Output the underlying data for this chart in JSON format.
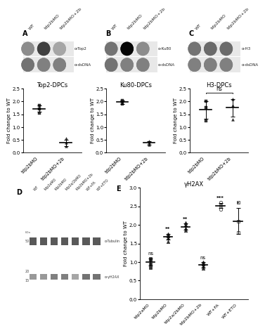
{
  "panel_A": {
    "title": "Top2-DPCs",
    "xlabel_cats": [
      "tdp2bMO",
      "tdp2bMO+2b"
    ],
    "data": {
      "tdp2bMO": [
        1.55,
        1.72,
        1.85
      ],
      "tdp2bMO+2b": [
        0.25,
        0.38,
        0.55
      ]
    },
    "means": [
      1.72,
      0.38
    ],
    "errors": [
      0.13,
      0.13
    ],
    "ylim": [
      0.0,
      2.5
    ],
    "yticks": [
      0.0,
      0.5,
      1.0,
      1.5,
      2.0,
      2.5
    ],
    "ylabel": "Fold change to WT"
  },
  "panel_B": {
    "title": "Ku80-DPCs",
    "xlabel_cats": [
      "tdp2bMO",
      "tdp2bMO+2b"
    ],
    "data": {
      "tdp2bMO": [
        1.9,
        2.0,
        2.05
      ],
      "tdp2bMO+2b": [
        0.3,
        0.38,
        0.45
      ]
    },
    "means": [
      1.98,
      0.38
    ],
    "errors": [
      0.07,
      0.07
    ],
    "ylim": [
      0.0,
      2.5
    ],
    "yticks": [
      0.0,
      0.5,
      1.0,
      1.5,
      2.0,
      2.5
    ],
    "ylabel": "Fold change to WT"
  },
  "panel_C": {
    "title": "H3-DPCs",
    "xlabel_cats": [
      "tdp2bMO",
      "tdp2bMO+2b"
    ],
    "data": {
      "tdp2bMO": [
        1.25,
        1.75,
        2.0
      ],
      "tdp2bMO+2b": [
        1.3,
        1.85,
        2.1
      ]
    },
    "means": [
      1.67,
      1.75
    ],
    "errors": [
      0.35,
      0.35
    ],
    "annotation": "ns",
    "ylim": [
      0.0,
      2.5
    ],
    "yticks": [
      0.0,
      0.5,
      1.0,
      1.5,
      2.0,
      2.5
    ],
    "ylabel": "Fold change to WT"
  },
  "panel_E": {
    "title": "γH2AX",
    "xlabel_cats": [
      "tdp2aMO",
      "tdp2bMO",
      "tdp2a/2bMO",
      "tdp2bMO+2b",
      "WT+FA",
      "WT+ETO"
    ],
    "data": {
      "tdp2aMO": [
        0.85,
        0.95,
        1.05,
        1.1
      ],
      "tdp2bMO": [
        1.55,
        1.65,
        1.7,
        1.75
      ],
      "tdp2a/2bMO": [
        1.85,
        1.9,
        2.0,
        2.05
      ],
      "tdp2bMO+2b": [
        0.82,
        0.88,
        0.95,
        1.0
      ],
      "WT+FA": [
        2.42,
        2.5,
        2.55,
        2.6
      ],
      "WT+ETO": [
        1.8,
        2.1,
        2.6
      ]
    },
    "means": [
      1.0,
      1.68,
      1.95,
      0.92,
      2.52,
      2.1
    ],
    "errors": [
      0.1,
      0.08,
      0.08,
      0.07,
      0.07,
      0.35
    ],
    "annotations": [
      "ns",
      "**",
      "**",
      "ns",
      "***",
      "*"
    ],
    "ylim": [
      0.0,
      3.0
    ],
    "yticks": [
      0.0,
      0.5,
      1.0,
      1.5,
      2.0,
      2.5,
      3.0
    ],
    "ylabel": "Fold change to WT"
  },
  "dot_blot_A": {
    "labels_top": [
      "WT",
      "tdp2bMO",
      "tdp2bMO+2b"
    ],
    "row_labels": [
      "α-Top2",
      "α-dsDNA"
    ],
    "row0_shades": [
      0.55,
      0.25,
      0.65
    ],
    "row1_shades": [
      0.45,
      0.5,
      0.5
    ]
  },
  "dot_blot_B": {
    "labels_top": [
      "WT",
      "tdp2bMO",
      "tdp2bMO+2b"
    ],
    "row_labels": [
      "α-Ku80",
      "α-dsDNA"
    ],
    "row0_shades": [
      0.45,
      0.02,
      0.55
    ],
    "row1_shades": [
      0.45,
      0.5,
      0.5
    ]
  },
  "dot_blot_C": {
    "labels_top": [
      "WT",
      "tdp2bMO",
      "tdp2bMO+2b"
    ],
    "row_labels": [
      "α-H3",
      "α-dsDNA"
    ],
    "row0_shades": [
      0.45,
      0.42,
      0.42
    ],
    "row1_shades": [
      0.5,
      0.5,
      0.5
    ]
  },
  "western_D": {
    "labels_top": [
      "WT",
      "tdp2aMO",
      "tdp2bMO",
      "tdp2a/2bMO",
      "tdp2bMO+2b",
      "WT+FA",
      "WT+ETO"
    ],
    "tubulin_shades": [
      0.35,
      0.35,
      0.35,
      0.35,
      0.35,
      0.35,
      0.35
    ],
    "h2ax_shades": [
      0.6,
      0.6,
      0.5,
      0.5,
      0.65,
      0.45,
      0.45
    ]
  },
  "colors": {
    "background": "#ffffff"
  }
}
